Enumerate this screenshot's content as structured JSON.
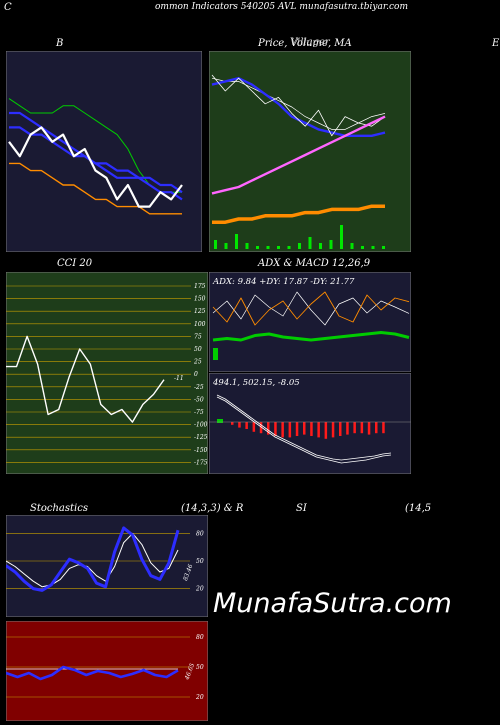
{
  "header": {
    "title": "ommon  Indicators 540205 AVL  munafasutra.tbiyar.com",
    "left_mark": "C"
  },
  "watermark": "MunafaSutra.com",
  "panels": {
    "bollinger": {
      "title": "B",
      "right_mark": "E"
    },
    "price_ma": {
      "title": "Price,  Volume,  MA",
      "overlay_title": "Villager"
    },
    "cci": {
      "title": "CCI 20",
      "current_label": "-11",
      "ticks": [
        "175",
        "150",
        "125",
        "100",
        "75",
        "50",
        "25",
        "0",
        "-25",
        "-50",
        "-75",
        "-100",
        "-125",
        "-150",
        "-175"
      ]
    },
    "adx": {
      "title": "ADX  & MACD 12,26,9",
      "readout": "ADX: 9.84  +DY: 17.87 -DY: 21.77"
    },
    "macd": {
      "readout": "494.1,  502.15,  -8.05"
    },
    "stoch": {
      "title": "Stochastics",
      "params": "(14,3,3) & R",
      "current_label": "83.46",
      "ticks": [
        "80",
        "50",
        "20"
      ]
    },
    "rsi": {
      "title": "SI",
      "params": "(14,5",
      "current_label": "46.65",
      "ticks": [
        "80",
        "50",
        "20"
      ]
    }
  },
  "colors": {
    "dark_navy": "#1a1a33",
    "dark_green": "#1e3d1a",
    "dark_red": "#800000",
    "upper_band": "#00cc00",
    "mid_band": "#2d2dff",
    "lower_band": "#ff8c00",
    "price": "#ffffff"
  },
  "chart_data": [
    {
      "type": "line",
      "title": "B",
      "series": [
        {
          "values": [
            101,
            100,
            99,
            99,
            99,
            100,
            100,
            99,
            98,
            97,
            96,
            94,
            91,
            89,
            88,
            88,
            88
          ]
        },
        {
          "values": [
            99,
            99,
            98,
            97,
            96,
            95,
            94,
            93,
            92,
            91,
            90,
            90,
            90,
            89,
            88,
            88,
            87
          ]
        },
        {
          "values": [
            97,
            97,
            96,
            96,
            95,
            94,
            93,
            93,
            92,
            92,
            91,
            91,
            90,
            90,
            89,
            89,
            88
          ]
        },
        {
          "values": [
            92,
            92,
            91,
            91,
            90,
            89,
            89,
            88,
            87,
            87,
            86,
            86,
            86,
            85,
            85,
            85,
            85
          ]
        },
        {
          "values": [
            95,
            93,
            96,
            97,
            95,
            96,
            93,
            94,
            91,
            90,
            87,
            89,
            86,
            86,
            88,
            87,
            89
          ]
        }
      ]
    },
    {
      "type": "line",
      "title": "Price,  Volume,  MA",
      "series": [
        {
          "values": [
            98,
            97,
            97,
            95,
            93,
            91,
            89,
            86,
            84,
            82,
            82,
            84,
            86,
            87
          ]
        },
        {
          "values": [
            96,
            97,
            98,
            96,
            93,
            90,
            86,
            84,
            82,
            81,
            80,
            80,
            80,
            81
          ]
        },
        {
          "values": [
            99,
            94,
            98,
            94,
            90,
            92,
            87,
            83,
            88,
            80,
            86,
            84,
            83,
            86
          ]
        },
        {
          "values": [
            62,
            63,
            64,
            66,
            68,
            70,
            72,
            74,
            76,
            78,
            80,
            82,
            84,
            86
          ]
        },
        {
          "values": [
            53,
            53,
            54,
            54,
            55,
            55,
            55,
            56,
            56,
            57,
            57,
            57,
            58,
            58
          ]
        }
      ],
      "volume": [
        3,
        2,
        5,
        2,
        1,
        1,
        1,
        1,
        2,
        4,
        2,
        3,
        8,
        2,
        1,
        1,
        1
      ]
    },
    {
      "type": "line",
      "title": "CCI 20",
      "ylim": [
        -175,
        175
      ],
      "values": [
        15,
        15,
        75,
        20,
        -80,
        -70,
        -5,
        50,
        20,
        -60,
        -80,
        -70,
        -95,
        -60,
        -40,
        -11
      ]
    },
    {
      "type": "line",
      "title": "ADX  & MACD 12,26,9",
      "adx": [
        9.0,
        9.5,
        9.0,
        10.5,
        11.0,
        10.0,
        9.5,
        9.0,
        9.5,
        10.0,
        10.5,
        11.0,
        11.5,
        11.0,
        9.84
      ],
      "plus_di": [
        18,
        22,
        16,
        24,
        20,
        17,
        25,
        19,
        14,
        21,
        23,
        18,
        22,
        20,
        17.87
      ],
      "minus_di": [
        20,
        15,
        23,
        14,
        19,
        22,
        16,
        21,
        25,
        17,
        15,
        24,
        19,
        23,
        21.77
      ],
      "macd_hist": [
        -2,
        -4,
        -5,
        -7,
        -8,
        -9,
        -10,
        -11,
        -11,
        -10,
        -9,
        -10,
        -11,
        -12,
        -11,
        -10,
        -9,
        -8,
        -8,
        -9,
        -8,
        -8
      ]
    },
    {
      "type": "line",
      "title": "Stochastics",
      "ylim": [
        0,
        100
      ],
      "k": [
        45,
        38,
        28,
        20,
        18,
        24,
        38,
        52,
        48,
        42,
        26,
        22,
        60,
        86,
        78,
        52,
        34,
        30,
        48,
        83.46
      ],
      "d": [
        50,
        44,
        36,
        28,
        22,
        24,
        30,
        42,
        46,
        44,
        34,
        28,
        44,
        70,
        80,
        68,
        48,
        38,
        42,
        62
      ]
    },
    {
      "type": "line",
      "title": "SI",
      "ylim": [
        0,
        100
      ],
      "rsi": [
        44,
        40,
        44,
        38,
        42,
        50,
        47,
        42,
        46,
        44,
        40,
        43,
        47,
        42,
        40,
        46.65
      ],
      "ref": [
        48,
        48,
        48,
        48,
        48,
        48,
        48,
        48,
        48,
        48,
        48,
        48,
        48,
        48,
        48,
        48
      ]
    }
  ]
}
